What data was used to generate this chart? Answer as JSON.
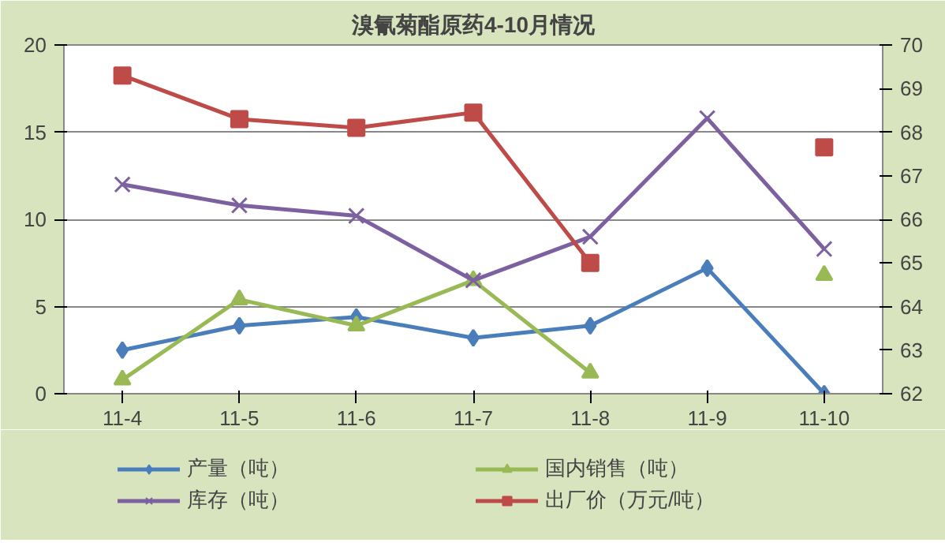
{
  "chart_data": {
    "type": "line",
    "title": "溴氰菊酯原药4-10月情况",
    "categories": [
      "11-4",
      "11-5",
      "11-6",
      "11-7",
      "11-8",
      "11-9",
      "11-10"
    ],
    "series": [
      {
        "name": "产量（吨）",
        "color": "#4a7ebb",
        "marker": "diamond",
        "values": [
          2.5,
          3.9,
          4.4,
          3.2,
          3.9,
          7.2,
          0
        ]
      },
      {
        "name": "国内销售（吨）",
        "color": "#98b954",
        "marker": "triangle",
        "values": [
          0.8,
          5.4,
          3.9,
          6.5,
          1.2,
          null,
          6.8
        ]
      },
      {
        "name": "库存（吨）",
        "color": "#7d60a0",
        "marker": "cross",
        "values": [
          12,
          10.8,
          10.2,
          6.5,
          9,
          15.8,
          8.3
        ]
      },
      {
        "name": "出厂价（万元/吨）",
        "color": "#be4b48",
        "marker": "square",
        "axis": "y2",
        "values": [
          69.3,
          68.3,
          68.1,
          68.45,
          65.0,
          null,
          67.65
        ]
      }
    ],
    "ylim": [
      0,
      20
    ],
    "yticks": [
      0,
      5,
      10,
      15,
      20
    ],
    "y2lim": [
      62,
      70
    ],
    "y2ticks": [
      62,
      63,
      64,
      65,
      66,
      67,
      68,
      69,
      70
    ],
    "grid": "y",
    "legend": "bottom"
  }
}
